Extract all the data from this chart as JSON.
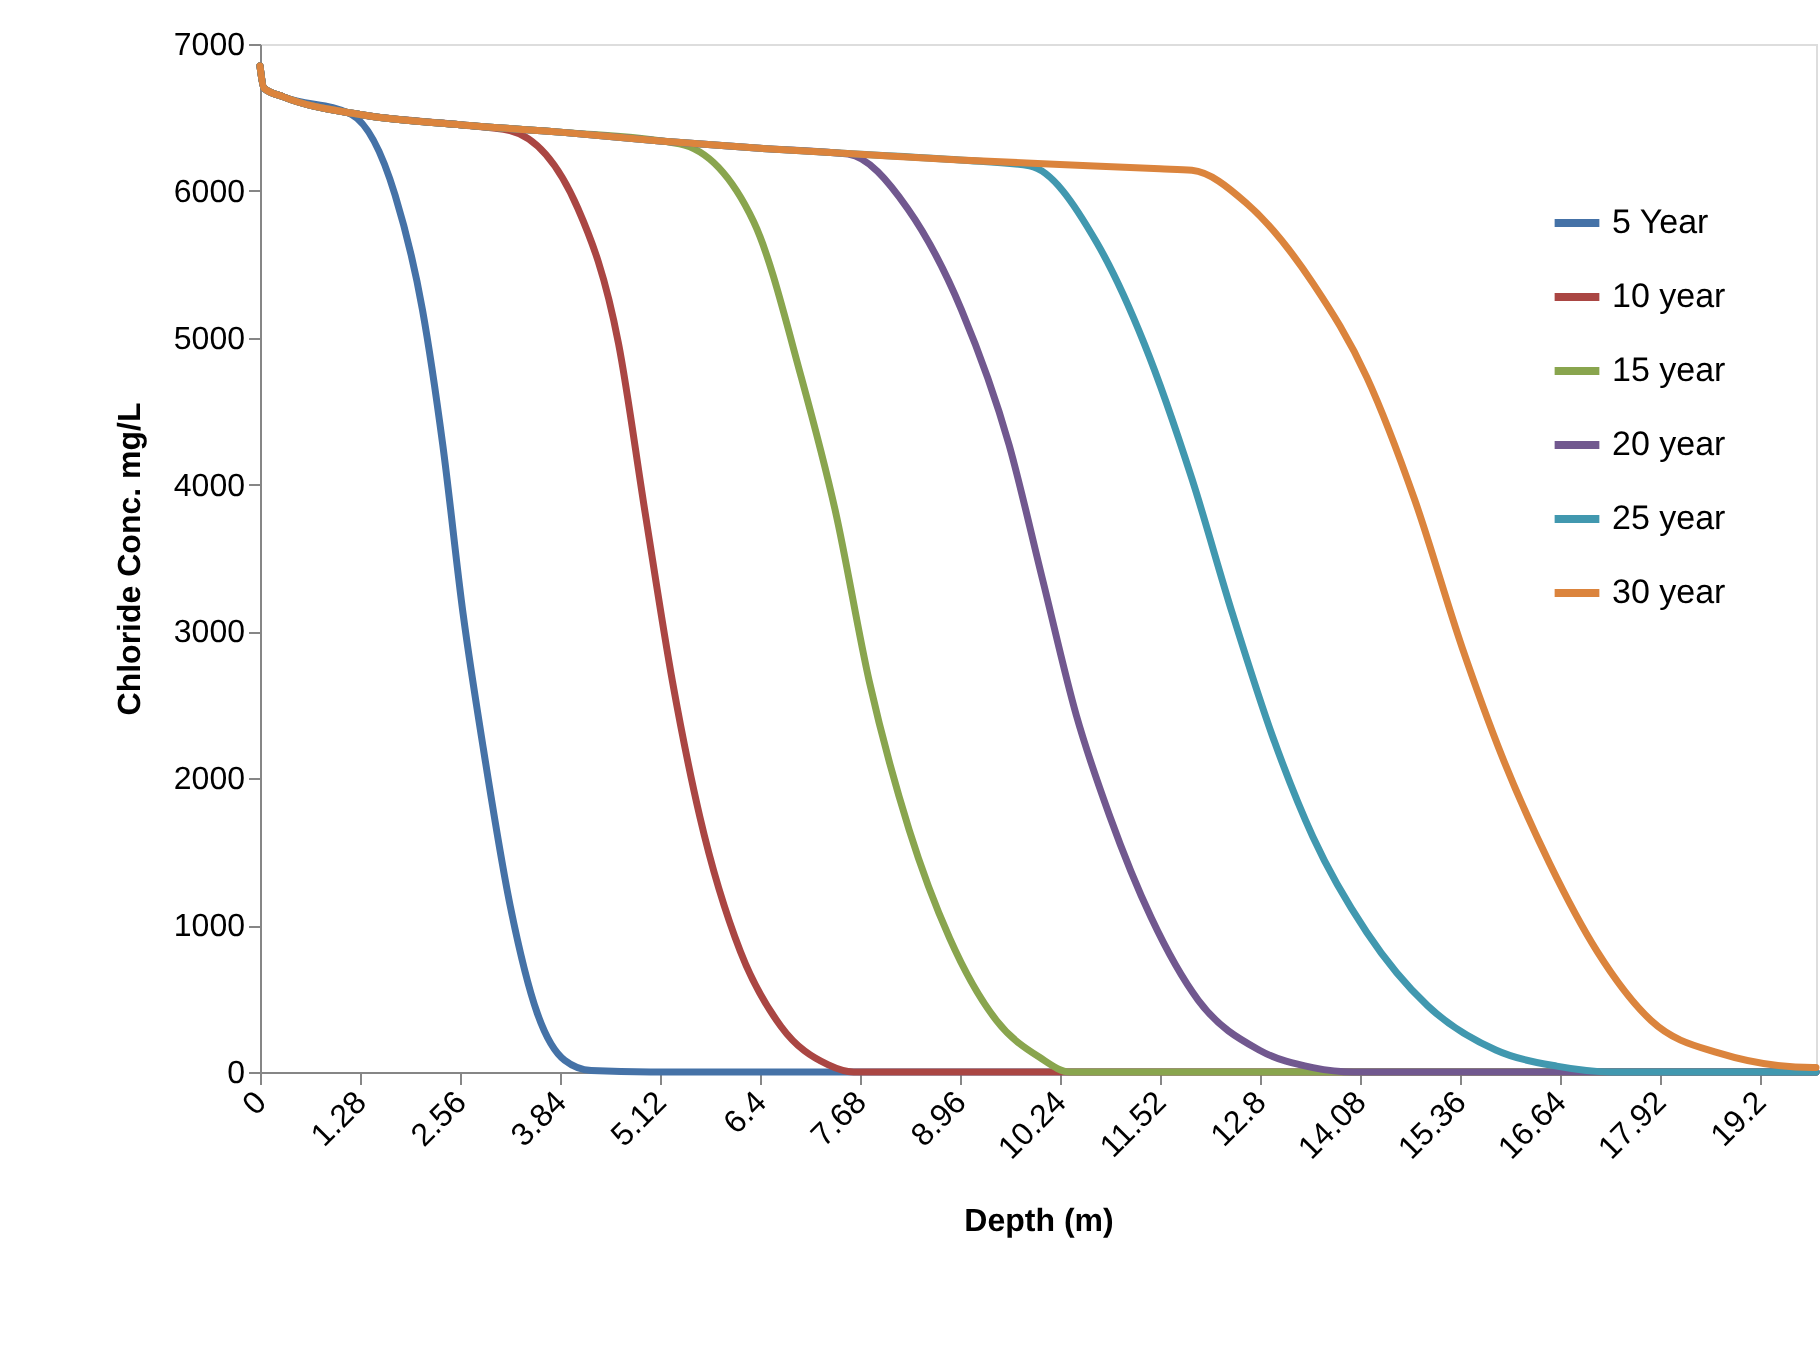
{
  "chart_data": {
    "type": "line",
    "xlabel": "Depth (m)",
    "ylabel": "Chloride Conc. mg/L",
    "xlim": [
      0,
      19.92
    ],
    "xticks": [
      0,
      1.28,
      2.56,
      3.84,
      5.12,
      6.4,
      7.68,
      8.96,
      10.24,
      11.52,
      12.8,
      14.08,
      15.36,
      16.64,
      17.92,
      19.2
    ],
    "ylim": [
      0,
      7000
    ],
    "yticks": [
      0,
      1000,
      2000,
      3000,
      4000,
      5000,
      6000,
      7000
    ],
    "grid": false,
    "legend": "right",
    "marker": "none",
    "line_style": "solid",
    "series": [
      {
        "name": "5 Year",
        "color": "#4572a7",
        "x": [
          0,
          0.05,
          0.3,
          1.17,
          1.73,
          2.08,
          2.34,
          2.6,
          2.86,
          3.2,
          3.55,
          3.9,
          4.24,
          5.0,
          19.92
        ],
        "values": [
          6850,
          6700,
          6640,
          6520,
          5970,
          5190,
          4270,
          3120,
          2200,
          1140,
          400,
          80,
          10,
          0,
          0
        ]
      },
      {
        "name": "10 year",
        "color": "#aa4643",
        "x": [
          0,
          0.05,
          0.3,
          1.28,
          2.56,
          3.2,
          4.07,
          4.59,
          4.93,
          5.28,
          5.63,
          6.15,
          6.67,
          7.27,
          7.6,
          19.92
        ],
        "values": [
          6850,
          6700,
          6640,
          6520,
          6450,
          6410,
          5880,
          4960,
          3810,
          2660,
          1740,
          820,
          310,
          50,
          0,
          0
        ]
      },
      {
        "name": "15 year",
        "color": "#89a54e",
        "x": [
          0,
          0.05,
          0.3,
          1.28,
          2.56,
          3.84,
          5.37,
          6.32,
          6.93,
          7.37,
          7.8,
          8.31,
          8.83,
          9.43,
          9.98,
          10.37,
          19.92
        ],
        "values": [
          6850,
          6700,
          6640,
          6520,
          6450,
          6400,
          6320,
          5790,
          4730,
          3810,
          2660,
          1650,
          910,
          350,
          100,
          0,
          0
        ]
      },
      {
        "name": "20 year",
        "color": "#71588f",
        "x": [
          0,
          0.05,
          0.3,
          1.28,
          2.56,
          3.84,
          5.12,
          6.4,
          7.53,
          8.29,
          8.98,
          9.59,
          10.02,
          10.45,
          10.88,
          11.41,
          12.01,
          12.79,
          13.48,
          14.0,
          19.92
        ],
        "values": [
          6850,
          6700,
          6640,
          6520,
          6450,
          6400,
          6340,
          6290,
          6250,
          5880,
          5190,
          4270,
          3350,
          2430,
          1740,
          1050,
          490,
          150,
          30,
          0,
          0
        ]
      },
      {
        "name": "25 year",
        "color": "#4198af",
        "x": [
          0,
          0.05,
          0.3,
          1.28,
          2.56,
          3.84,
          5.12,
          6.4,
          7.68,
          8.96,
          9.85,
          10.71,
          11.32,
          11.93,
          12.45,
          12.96,
          13.48,
          14.17,
          14.95,
          15.82,
          16.6,
          17.3,
          19.92
        ],
        "values": [
          6850,
          6700,
          6640,
          6520,
          6450,
          6400,
          6340,
          6290,
          6250,
          6210,
          6170,
          5650,
          4960,
          4040,
          3120,
          2290,
          1600,
          950,
          450,
          150,
          40,
          0,
          0
        ]
      },
      {
        "name": "30 year",
        "color": "#db843d",
        "x": [
          0,
          0.05,
          0.3,
          1.28,
          2.56,
          3.84,
          5.12,
          6.4,
          7.68,
          8.96,
          10.24,
          11.52,
          11.93,
          12.62,
          13.48,
          14.17,
          14.78,
          15.39,
          15.9,
          16.51,
          17.12,
          17.81,
          18.67,
          19.88,
          19.92
        ],
        "values": [
          6850,
          6700,
          6640,
          6520,
          6450,
          6400,
          6340,
          6290,
          6250,
          6210,
          6180,
          6150,
          6140,
          5920,
          5370,
          4730,
          3900,
          2890,
          2150,
          1420,
          820,
          350,
          130,
          30,
          30
        ]
      }
    ]
  }
}
